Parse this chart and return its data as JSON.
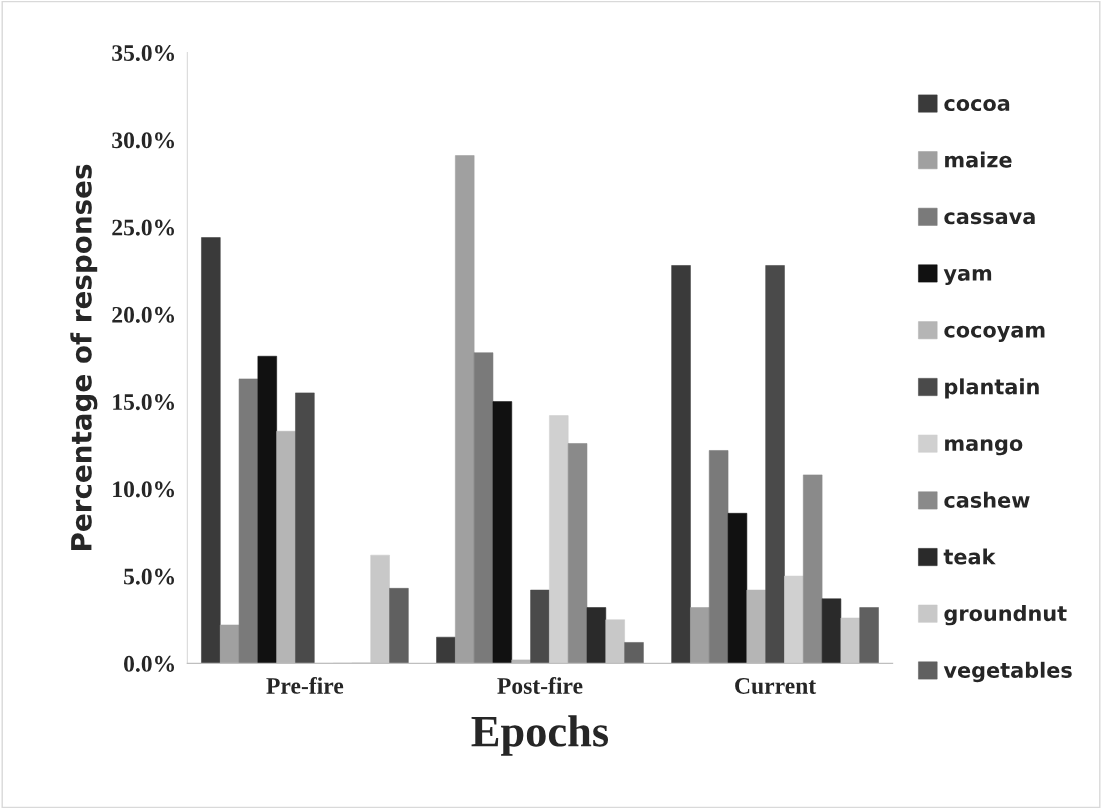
{
  "chart_data": {
    "type": "bar",
    "xlabel": "Epochs",
    "ylabel": "Percentage of responses",
    "categories": [
      "Pre-fire",
      "Post-fire",
      "Current"
    ],
    "series": [
      {
        "name": "cocoa",
        "color": "#3a3a3a",
        "values": [
          24.4,
          1.5,
          22.8
        ]
      },
      {
        "name": "maize",
        "color": "#a0a0a0",
        "values": [
          2.2,
          29.1,
          3.2
        ]
      },
      {
        "name": "cassava",
        "color": "#7a7a7a",
        "values": [
          16.3,
          17.8,
          12.2
        ]
      },
      {
        "name": "yam",
        "color": "#111111",
        "values": [
          17.6,
          15.0,
          8.6
        ]
      },
      {
        "name": "cocoyam",
        "color": "#b5b5b5",
        "values": [
          13.3,
          0.2,
          4.2
        ]
      },
      {
        "name": "plantain",
        "color": "#4a4a4a",
        "values": [
          15.5,
          4.2,
          22.8
        ]
      },
      {
        "name": "mango",
        "color": "#d0d0d0",
        "values": [
          0,
          14.2,
          5.0
        ]
      },
      {
        "name": "cashew",
        "color": "#8a8a8a",
        "values": [
          0,
          12.6,
          10.8
        ]
      },
      {
        "name": "teak",
        "color": "#2a2a2a",
        "values": [
          0,
          3.2,
          3.7
        ]
      },
      {
        "name": "groundnut",
        "color": "#c8c8c8",
        "values": [
          6.2,
          2.5,
          2.6
        ]
      },
      {
        "name": "vegetables",
        "color": "#606060",
        "values": [
          4.3,
          1.2,
          3.2
        ]
      }
    ],
    "ylim": [
      0,
      35
    ],
    "yticks": [
      {
        "value": 0,
        "label": "0.0%"
      },
      {
        "value": 5,
        "label": "5.0%"
      },
      {
        "value": 10,
        "label": "10.0%"
      },
      {
        "value": 15,
        "label": "15.0%"
      },
      {
        "value": 20,
        "label": "20.0%"
      },
      {
        "value": 25,
        "label": "25.0%"
      },
      {
        "value": 30,
        "label": "30.0%"
      },
      {
        "value": 35,
        "label": "35.0%"
      }
    ],
    "grid": false,
    "legend": "right"
  }
}
